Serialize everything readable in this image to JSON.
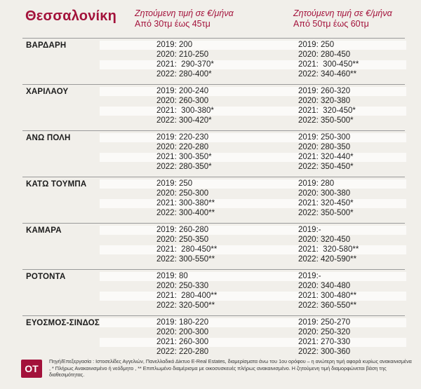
{
  "header": {
    "city": "Θεσσαλονίκη",
    "col1_line1": "Ζητούμενη τιμή σε €/μήνα",
    "col1_line2": "Από 30τμ έως 45τμ",
    "col2_line1": "Ζητούμενη τιμή σε €/μήνα",
    "col2_line2": "Από 50τμ έως 60τμ"
  },
  "areas": [
    {
      "name": "ΒΑΡΔΑΡΗ",
      "col1": [
        "2019: 200",
        "2020: 210-250",
        "2021:  290-370*",
        "2022: 280-400*"
      ],
      "col2": [
        "2019: 250",
        "2020: 280-450",
        "2021:  300-450**",
        "2022: 340-460**"
      ]
    },
    {
      "name": "ΧΑΡΙΛΑΟΥ",
      "col1": [
        "2019: 200-240",
        "2020: 260-300",
        "2021:  300-380*",
        "2022: 300-420*"
      ],
      "col2": [
        "2019: 260-320",
        "2020: 320-380",
        "2021:  320-450*",
        "2022: 350-500*"
      ]
    },
    {
      "name": "ΑΝΩ ΠΟΛΗ",
      "col1": [
        "2019: 220-230",
        "2020: 220-280",
        "2021: 300-350*",
        "2022: 280-350*"
      ],
      "col2": [
        "2019: 250-300",
        "2020: 280-350",
        "2021: 320-440*",
        "2022: 350-450*"
      ]
    },
    {
      "name": "ΚΑΤΩ ΤΟΥΜΠΑ",
      "col1": [
        "2019: 250",
        "2020: 250-300",
        "2021: 300-380**",
        "2022: 300-400**"
      ],
      "col2": [
        "2019: 280",
        "2020: 300-380",
        "2021: 320-450*",
        "2022: 350-500*"
      ]
    },
    {
      "name": "ΚΑΜΑΡΑ",
      "col1": [
        "2019: 260-280",
        "2020: 250-350",
        "2021:  280-450**",
        "2022: 300-550**"
      ],
      "col2": [
        "2019:-",
        "2020: 320-450",
        "2021:  320-580**",
        "2022: 420-590**"
      ]
    },
    {
      "name": "ΡΟΤΟΝΤΑ",
      "col1": [
        "2019: 80",
        "2020: 250-330",
        "2021:  280-400**",
        "2022: 320-500**"
      ],
      "col2": [
        "2019:-",
        "2020: 340-480",
        "2021: 300-480**",
        "2022: 360-550**"
      ]
    },
    {
      "name": "ΕΥΟΣΜΟΣ-ΣΙΝΔΟΣ",
      "col1": [
        "2019: 180-220",
        "2020: 200-300",
        "2021: 260-300",
        "2022: 220-280"
      ],
      "col2": [
        "2019: 250-270",
        "2020: 250-320",
        "2021: 270-330",
        "2022: 300-360"
      ]
    }
  ],
  "footer": {
    "logo": "ΟΤ",
    "source": "Πηγή/Επεξεργασία : Ιστοσελίδες Αγγελιών, Πανελλαδικό Δίκτυο E-Real Estates, διαμερίσματα άνω του 1ου ορόφου – η ανώτερη τιμή αφορά κυρίως ανακαινισμένα , * Πλήρως Ανακαινισμένο ή νεόδμητο , ** Επιπλωμένο διαμέρισμα με οικοσυσκευές πλήρως ανακαινισμένο. Η ζητούμενη τιμή διαμορφώνεται βάση της διαθεσιμότητας."
  },
  "colors": {
    "accent": "#a3123b",
    "background": "#f1efea"
  }
}
